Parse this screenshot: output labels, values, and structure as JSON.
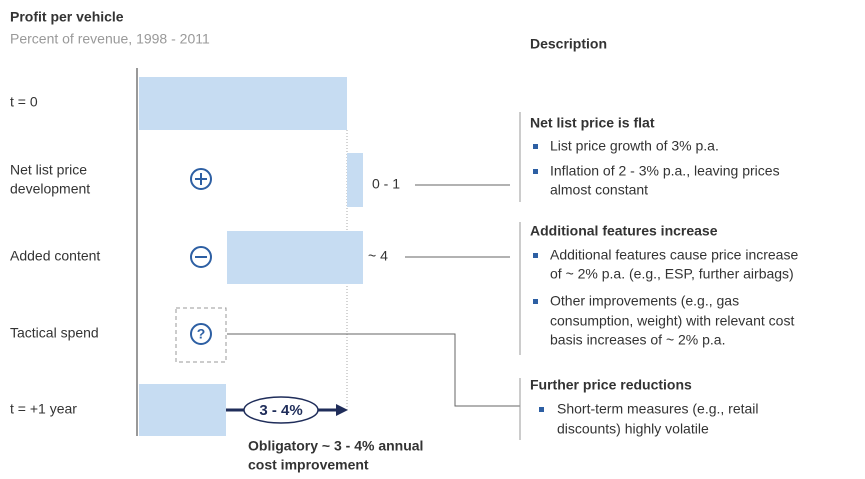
{
  "header": {
    "title": "Profit per vehicle",
    "subtitle": "Percent of revenue, 1998 - 2011",
    "description_label": "Description"
  },
  "rows": [
    {
      "label": [
        "t = 0"
      ]
    },
    {
      "label": [
        "Net list price",
        "development"
      ],
      "delta": "0 - 1"
    },
    {
      "label": [
        "Added content"
      ],
      "delta": "~ 4"
    },
    {
      "label": [
        "Tactical spend"
      ],
      "icon": "?"
    },
    {
      "label": [
        "t = +1 year"
      ]
    }
  ],
  "callout": "3 - 4%",
  "note": [
    "Obligatory ~ 3 - 4% annual",
    "cost improvement"
  ],
  "sections": [
    {
      "heading": "Net list price is flat",
      "bullets": [
        [
          "List price growth of 3% p.a."
        ],
        [
          "Inflation of 2 - 3% p.a., leaving prices",
          "almost constant"
        ]
      ]
    },
    {
      "heading": "Additional features increase",
      "bullets": [
        [
          "Additional features cause price increase",
          "of ~ 2% p.a. (e.g., ESP, further airbags)"
        ],
        [
          "Other improvements (e.g., gas",
          "consumption, weight) with relevant cost",
          "basis increases of ~ 2% p.a."
        ]
      ]
    },
    {
      "heading": "Further price reductions",
      "bullets": [
        [
          "Short-term measures (e.g., retail",
          "discounts) highly volatile"
        ]
      ]
    }
  ]
}
